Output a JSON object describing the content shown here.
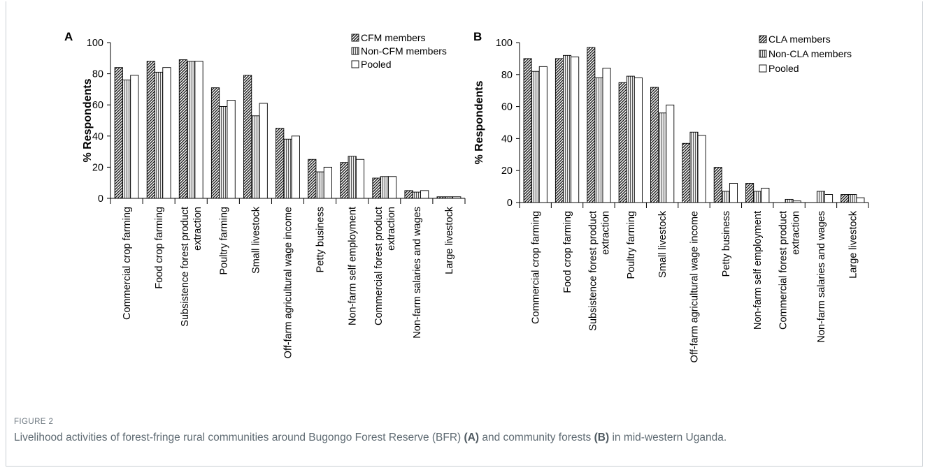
{
  "figure": {
    "label": "FIGURE 2",
    "caption": {
      "pre": "Livelihood activities of forest-fringe rural communities around Bugongo Forest Reserve (BFR) ",
      "ref_a": "(A)",
      "mid": " and community forests ",
      "ref_b": "(B)",
      "post": " in mid-western Uganda."
    }
  },
  "chart_data": [
    {
      "panel": "A",
      "type": "bar",
      "ylabel": "% Respondents",
      "ylim": [
        0,
        100
      ],
      "yticks": [
        0,
        20,
        40,
        60,
        80,
        100
      ],
      "grid": false,
      "legend_position": "top-right",
      "categories": [
        "Commercial crop farming",
        "Food crop farming",
        "Subsistence forest product extraction",
        "Poultry farming",
        "Small livestock",
        "Off-farm agricultural wage income",
        "Petty business",
        "Non-farm self employment",
        "Commercial forest product extraction",
        "Non-farm salaries and wages",
        "Large livestock"
      ],
      "series": [
        {
          "name": "CFM members",
          "pattern": "diagonal",
          "values": [
            84,
            88,
            89,
            71,
            79,
            45,
            25,
            23,
            13,
            5,
            1
          ]
        },
        {
          "name": "Non-CFM members",
          "pattern": "vertical",
          "values": [
            76,
            81,
            88,
            59,
            53,
            38,
            17,
            27,
            14,
            4,
            1
          ]
        },
        {
          "name": "Pooled",
          "pattern": "white",
          "values": [
            79,
            84,
            88,
            63,
            61,
            40,
            20,
            25,
            14,
            5,
            1
          ]
        }
      ]
    },
    {
      "panel": "B",
      "type": "bar",
      "ylabel": "% Respondents",
      "ylim": [
        0,
        100
      ],
      "yticks": [
        0,
        20,
        40,
        60,
        80,
        100
      ],
      "grid": false,
      "legend_position": "top-right",
      "categories": [
        "Commercial crop farming",
        "Food crop farming",
        "Subsistence forest product extraction",
        "Poultry farming",
        "Small livestock",
        "Off-farm agricultural wage income",
        "Petty business",
        "Non-farm self employment",
        "Commercial forest product extraction",
        "Non-farm salaries and wages",
        "Large livestock"
      ],
      "series": [
        {
          "name": "CLA members",
          "pattern": "diagonal",
          "values": [
            90,
            90,
            97,
            75,
            72,
            37,
            22,
            12,
            0,
            0,
            5
          ]
        },
        {
          "name": "Non-CLA members",
          "pattern": "vertical",
          "values": [
            82,
            92,
            78,
            79,
            56,
            44,
            7,
            7,
            2,
            7,
            5
          ]
        },
        {
          "name": "Pooled",
          "pattern": "white",
          "values": [
            85,
            91,
            84,
            78,
            61,
            42,
            12,
            9,
            1,
            5,
            3
          ]
        }
      ]
    }
  ]
}
